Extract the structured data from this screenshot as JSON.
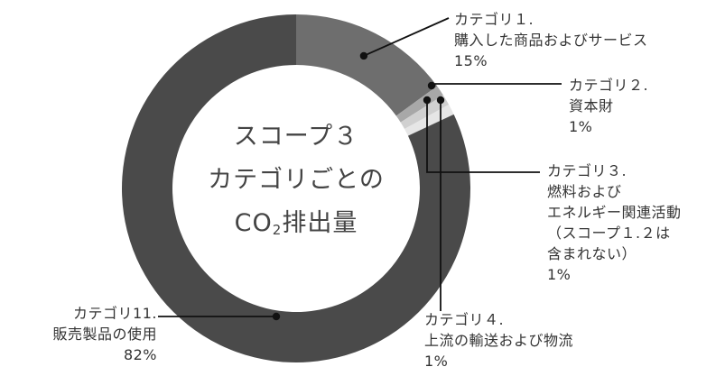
{
  "chart_data": {
    "type": "pie",
    "style": "donut",
    "center_title": {
      "line1": "スコープ３",
      "line2": "カテゴリごとの",
      "line3_co": "CO",
      "line3_sub": "2",
      "line3_rest": "排出量"
    },
    "slices": [
      {
        "lines": [
          "カテゴリ１.",
          "購入した商品およびサービス"
        ],
        "pct_label": "15%",
        "value": 15,
        "color": "#6e6e6e"
      },
      {
        "lines": [
          "カテゴリ２.",
          "資本財"
        ],
        "pct_label": "1%",
        "value": 1,
        "color": "#a8a8a8"
      },
      {
        "lines": [
          "カテゴリ３.",
          "燃料および",
          "エネルギー関連活動",
          "（スコープ１.２は",
          "含まれない）"
        ],
        "pct_label": "1%",
        "value": 1,
        "color": "#d0d0d0"
      },
      {
        "lines": [
          "カテゴリ４.",
          "上流の輸送および物流"
        ],
        "pct_label": "1%",
        "value": 1,
        "color": "#e6e6e6"
      },
      {
        "lines": [
          "カテゴリ11.",
          "販売製品の使用"
        ],
        "pct_label": "82%",
        "value": 82,
        "color": "#4a4a4a"
      }
    ]
  }
}
